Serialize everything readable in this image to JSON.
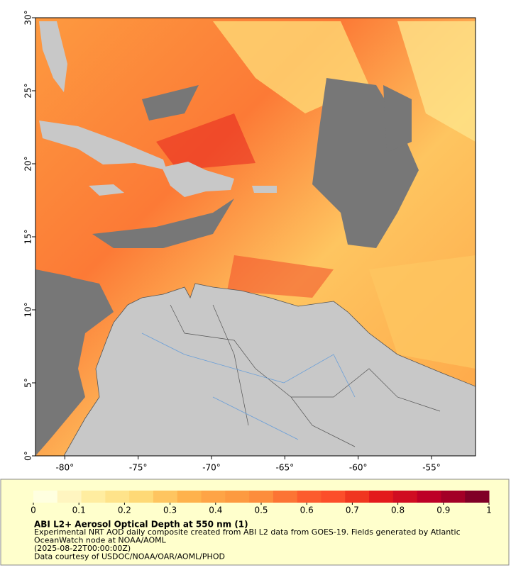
{
  "map": {
    "xlim": [
      -82,
      -52
    ],
    "ylim": [
      0,
      30
    ],
    "xticks": [
      {
        "value": -80,
        "label": "-80°"
      },
      {
        "value": -75,
        "label": "-75°"
      },
      {
        "value": -70,
        "label": "-70°"
      },
      {
        "value": -65,
        "label": "-65°"
      },
      {
        "value": -60,
        "label": "-60°"
      },
      {
        "value": -55,
        "label": "-55°"
      }
    ],
    "yticks": [
      {
        "value": 0,
        "label": "0°"
      },
      {
        "value": 5,
        "label": "5°"
      },
      {
        "value": 10,
        "label": "10°"
      },
      {
        "value": 15,
        "label": "15°"
      },
      {
        "value": 20,
        "label": "20°"
      },
      {
        "value": 25,
        "label": "25°"
      },
      {
        "value": 30,
        "label": "30°"
      }
    ]
  },
  "colorbar": {
    "lim": [
      0,
      1
    ],
    "ticks": [
      0,
      0.1,
      0.2,
      0.3,
      0.4,
      0.5,
      0.6,
      0.7,
      0.8,
      0.9,
      1
    ],
    "colors": [
      "#ffffe0",
      "#fff5c0",
      "#ffeda0",
      "#fee38a",
      "#fed976",
      "#fec560",
      "#feb24c",
      "#fea446",
      "#fd9a40",
      "#fd8d3c",
      "#fc7434",
      "#fc5c2d",
      "#fc4e2a",
      "#f0361f",
      "#e31a1c",
      "#d00d21",
      "#bd0026",
      "#a30026",
      "#800026"
    ],
    "title": "ABI L2+ Aerosol Optical Depth at 550 nm (1)"
  },
  "notes": [
    "Experimental NRT AOD daily composite created from ABI L2 data from GOES-19. Fields generated by Atlantic",
    "OceanWatch node at NOAA/AOML",
    "(2025-08-22T00:00:00Z)",
    "Data courtesy of USDOC/NOAA/OAR/AOML/PHOD"
  ]
}
